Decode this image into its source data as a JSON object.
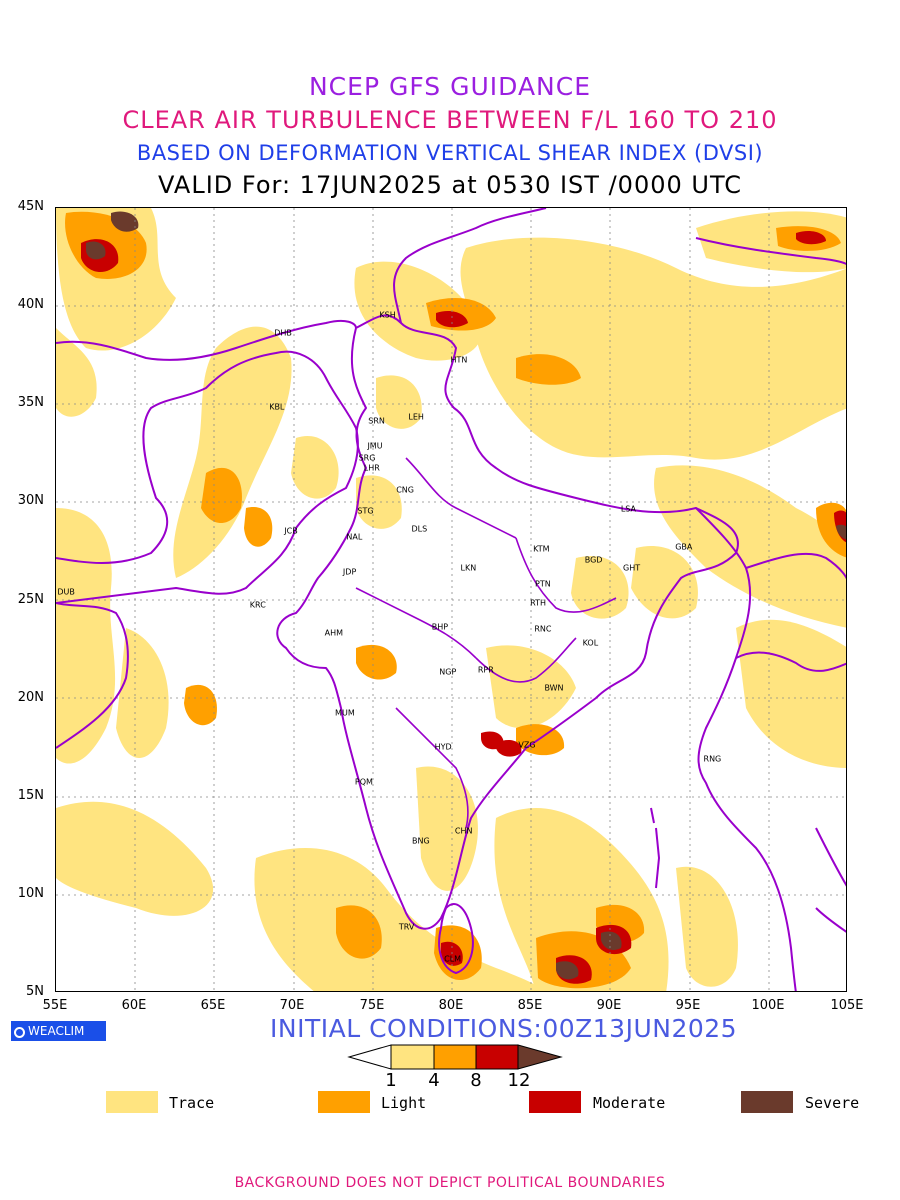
{
  "titles": {
    "line1": "NCEP GFS GUIDANCE",
    "line2": "CLEAR AIR TURBULENCE BETWEEN F/L 160 TO 210",
    "line3": "BASED ON DEFORMATION VERTICAL SHEAR INDEX (DVSI)",
    "line4": "VALID For: 17JUN2025 at 0530 IST /0000 UTC"
  },
  "axes": {
    "lat_labels": [
      "45N",
      "40N",
      "35N",
      "30N",
      "25N",
      "20N",
      "15N",
      "10N",
      "5N"
    ],
    "lon_labels": [
      "55E",
      "60E",
      "65E",
      "70E",
      "75E",
      "80E",
      "85E",
      "90E",
      "95E",
      "100E",
      "105E"
    ],
    "lat_range": [
      5,
      45
    ],
    "lon_range": [
      55,
      105
    ]
  },
  "stations": [
    {
      "code": "KSH",
      "lon": 76.0,
      "lat": 39.5
    },
    {
      "code": "DHB",
      "lon": 69.4,
      "lat": 38.6
    },
    {
      "code": "HTN",
      "lon": 80.5,
      "lat": 37.2
    },
    {
      "code": "KBL",
      "lon": 69.0,
      "lat": 34.8
    },
    {
      "code": "LEH",
      "lon": 77.8,
      "lat": 34.3
    },
    {
      "code": "SRN",
      "lon": 75.3,
      "lat": 34.1
    },
    {
      "code": "JMU",
      "lon": 75.2,
      "lat": 32.8
    },
    {
      "code": "SRG",
      "lon": 74.7,
      "lat": 32.2
    },
    {
      "code": "LHR",
      "lon": 75.0,
      "lat": 31.7
    },
    {
      "code": "CNG",
      "lon": 77.1,
      "lat": 30.6
    },
    {
      "code": "STG",
      "lon": 74.6,
      "lat": 29.5
    },
    {
      "code": "JCB",
      "lon": 69.9,
      "lat": 28.5
    },
    {
      "code": "NAL",
      "lon": 73.9,
      "lat": 28.2
    },
    {
      "code": "DLS",
      "lon": 78.0,
      "lat": 28.6
    },
    {
      "code": "LSA",
      "lon": 91.2,
      "lat": 29.6
    },
    {
      "code": "KTM",
      "lon": 85.7,
      "lat": 27.6
    },
    {
      "code": "BGD",
      "lon": 89.0,
      "lat": 27.0
    },
    {
      "code": "GBA",
      "lon": 94.7,
      "lat": 27.7
    },
    {
      "code": "LKN",
      "lon": 81.1,
      "lat": 26.6
    },
    {
      "code": "GHT",
      "lon": 91.4,
      "lat": 26.6
    },
    {
      "code": "JDP",
      "lon": 73.6,
      "lat": 26.4
    },
    {
      "code": "PTN",
      "lon": 85.8,
      "lat": 25.8
    },
    {
      "code": "DUB",
      "lon": 55.7,
      "lat": 25.4
    },
    {
      "code": "RTH",
      "lon": 85.5,
      "lat": 24.8
    },
    {
      "code": "KRC",
      "lon": 67.8,
      "lat": 24.7
    },
    {
      "code": "BHP",
      "lon": 79.3,
      "lat": 23.6
    },
    {
      "code": "RNC",
      "lon": 85.8,
      "lat": 23.5
    },
    {
      "code": "AHM",
      "lon": 72.6,
      "lat": 23.3
    },
    {
      "code": "KOL",
      "lon": 88.8,
      "lat": 22.8
    },
    {
      "code": "NGP",
      "lon": 79.8,
      "lat": 21.3
    },
    {
      "code": "RPR",
      "lon": 82.2,
      "lat": 21.4
    },
    {
      "code": "BWN",
      "lon": 86.5,
      "lat": 20.5
    },
    {
      "code": "MUM",
      "lon": 73.3,
      "lat": 19.2
    },
    {
      "code": "HYD",
      "lon": 79.5,
      "lat": 17.5
    },
    {
      "code": "VZG",
      "lon": 84.8,
      "lat": 17.6
    },
    {
      "code": "RNG",
      "lon": 96.5,
      "lat": 16.9
    },
    {
      "code": "PQM",
      "lon": 74.5,
      "lat": 15.7
    },
    {
      "code": "CHN",
      "lon": 80.8,
      "lat": 13.2
    },
    {
      "code": "BNG",
      "lon": 78.1,
      "lat": 12.7
    },
    {
      "code": "TRV",
      "lon": 77.2,
      "lat": 8.3
    },
    {
      "code": "CLM",
      "lon": 80.1,
      "lat": 6.7
    }
  ],
  "turbulence_colors": {
    "trace": "#ffe480",
    "light": "#ffa000",
    "moderate": "#c80000",
    "severe": "#6a3a2c",
    "boundary": "#9900cc",
    "grid": "#888888"
  },
  "colorbar": {
    "ticks": [
      "1",
      "4",
      "8",
      "12"
    ]
  },
  "legend": [
    {
      "label": "Trace",
      "color": "#ffe480"
    },
    {
      "label": "Light",
      "color": "#ffa000"
    },
    {
      "label": "Moderate",
      "color": "#c80000"
    },
    {
      "label": "Severe",
      "color": "#6a3a2c"
    }
  ],
  "initial_conditions": "INITIAL CONDITIONS:00Z13JUN2025",
  "logo_text": "WEACLIM",
  "footer": "BACKGROUND DOES NOT DEPICT POLITICAL BOUNDARIES"
}
